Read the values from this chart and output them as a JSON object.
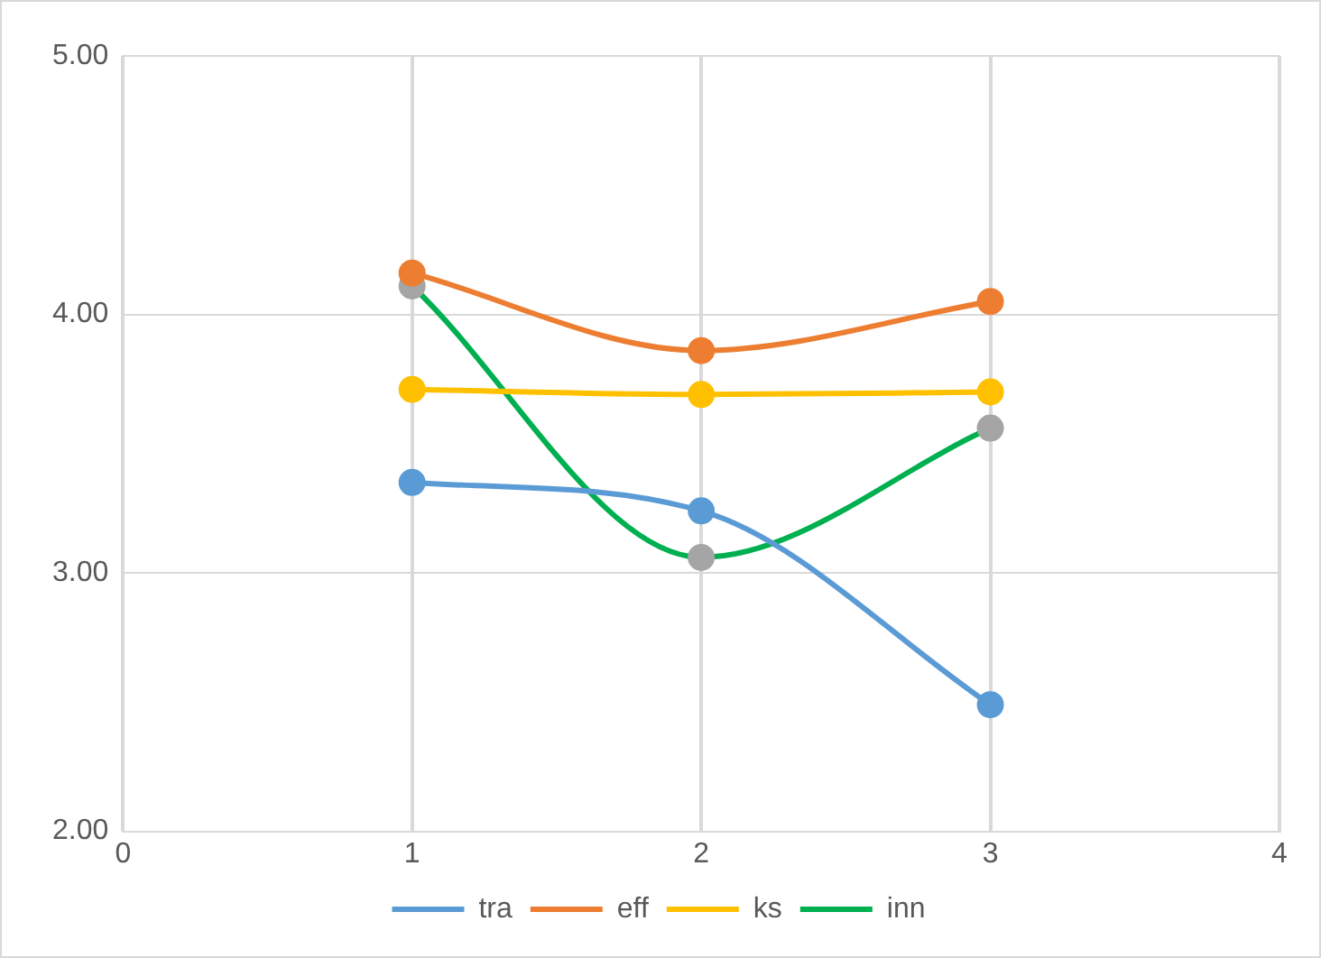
{
  "chart_data": {
    "type": "line",
    "x": [
      1,
      2,
      3
    ],
    "xlim": [
      0,
      4
    ],
    "xticks": [
      0,
      1,
      2,
      3,
      4
    ],
    "ylim": [
      2,
      5
    ],
    "yticks": [
      {
        "value": 2,
        "label": "2.00"
      },
      {
        "value": 3,
        "label": "3.00"
      },
      {
        "value": 4,
        "label": "4.00"
      },
      {
        "value": 5,
        "label": "5.00"
      }
    ],
    "grid": true,
    "legend": "bottom",
    "marker": "circle",
    "series": [
      {
        "name": "tra",
        "color": "#5b9bd5",
        "values": [
          3.35,
          3.24,
          2.49
        ]
      },
      {
        "name": "eff",
        "color": "#ed7d31",
        "values": [
          4.16,
          3.86,
          4.05
        ]
      },
      {
        "name": "ks",
        "color": "#ffc000",
        "values": [
          3.71,
          3.69,
          3.7
        ]
      },
      {
        "name": "inn",
        "color": "#00b050",
        "colors": [
          "#a5a5a5",
          "#a5a5a5",
          "#a5a5a5"
        ],
        "values": [
          4.11,
          3.06,
          3.56
        ]
      }
    ]
  }
}
